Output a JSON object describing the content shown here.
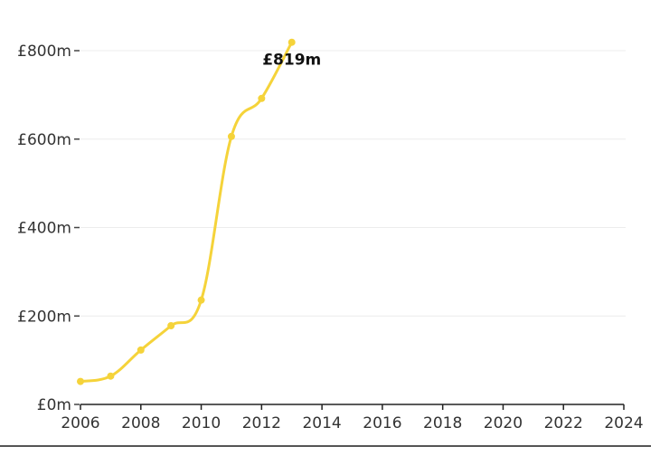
{
  "chart_data": {
    "type": "line",
    "title": "",
    "xlabel": "",
    "ylabel": "",
    "x": [
      2006,
      2007,
      2008,
      2009,
      2010,
      2011,
      2012,
      2013
    ],
    "series": [
      {
        "values": [
          52,
          64,
          123,
          178,
          236,
          606,
          692,
          819
        ]
      }
    ],
    "xlim": [
      2006,
      2024
    ],
    "ylim": [
      0,
      800
    ],
    "x_ticks": [
      2006,
      2008,
      2010,
      2012,
      2014,
      2016,
      2018,
      2020,
      2022,
      2024
    ],
    "x_tick_labels": [
      "2006",
      "2008",
      "2010",
      "2012",
      "2014",
      "2016",
      "2018",
      "2020",
      "2022",
      "2024"
    ],
    "y_ticks": [
      0,
      200,
      400,
      600,
      800
    ],
    "y_tick_labels": [
      "£0m",
      "£200m",
      "£400m",
      "£600m",
      "£800m"
    ],
    "grid": true,
    "line_color": "#f5d33a",
    "annotation": {
      "x": 2013,
      "y": 819,
      "text": "£819m"
    }
  }
}
